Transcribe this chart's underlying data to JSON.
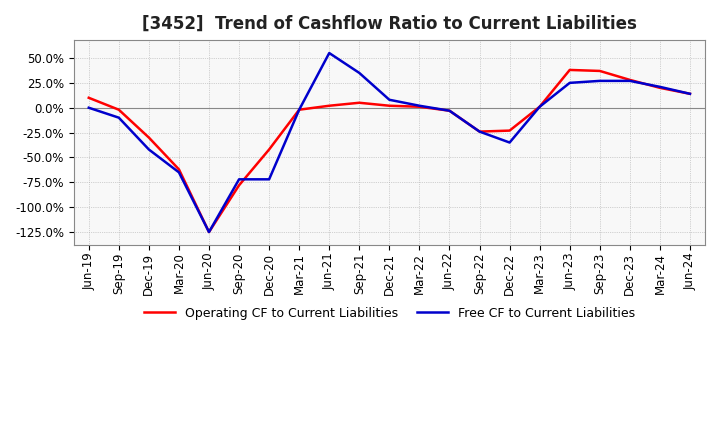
{
  "title": "[3452]  Trend of Cashflow Ratio to Current Liabilities",
  "x_labels": [
    "Jun-19",
    "Sep-19",
    "Dec-19",
    "Mar-20",
    "Jun-20",
    "Sep-20",
    "Dec-20",
    "Mar-21",
    "Jun-21",
    "Sep-21",
    "Dec-21",
    "Mar-22",
    "Jun-22",
    "Sep-22",
    "Dec-22",
    "Mar-23",
    "Jun-23",
    "Sep-23",
    "Dec-23",
    "Mar-24",
    "Jun-24"
  ],
  "operating_cf": [
    0.1,
    -0.02,
    -0.3,
    -0.62,
    -1.25,
    -0.78,
    -0.42,
    -0.02,
    0.02,
    0.05,
    0.02,
    0.01,
    -0.03,
    -0.24,
    -0.23,
    0.01,
    0.38,
    0.37,
    0.28,
    0.2,
    0.14
  ],
  "free_cf": [
    0.0,
    -0.1,
    -0.42,
    -0.65,
    -1.25,
    -0.72,
    -0.72,
    -0.02,
    0.55,
    0.35,
    0.08,
    0.02,
    -0.03,
    -0.24,
    -0.35,
    0.01,
    0.25,
    0.27,
    0.27,
    0.21,
    0.14
  ],
  "ylim": [
    -1.38,
    0.68
  ],
  "yticks": [
    0.5,
    0.25,
    0.0,
    -0.25,
    -0.5,
    -0.75,
    -1.0,
    -1.25
  ],
  "operating_color": "#ff0000",
  "free_color": "#0000cc",
  "grid_color": "#aaaaaa",
  "bg_color": "#f8f8f8",
  "zero_line_color": "#888888",
  "legend_operating": "Operating CF to Current Liabilities",
  "legend_free": "Free CF to Current Liabilities",
  "title_fontsize": 12,
  "tick_fontsize": 8.5,
  "line_width": 1.8
}
